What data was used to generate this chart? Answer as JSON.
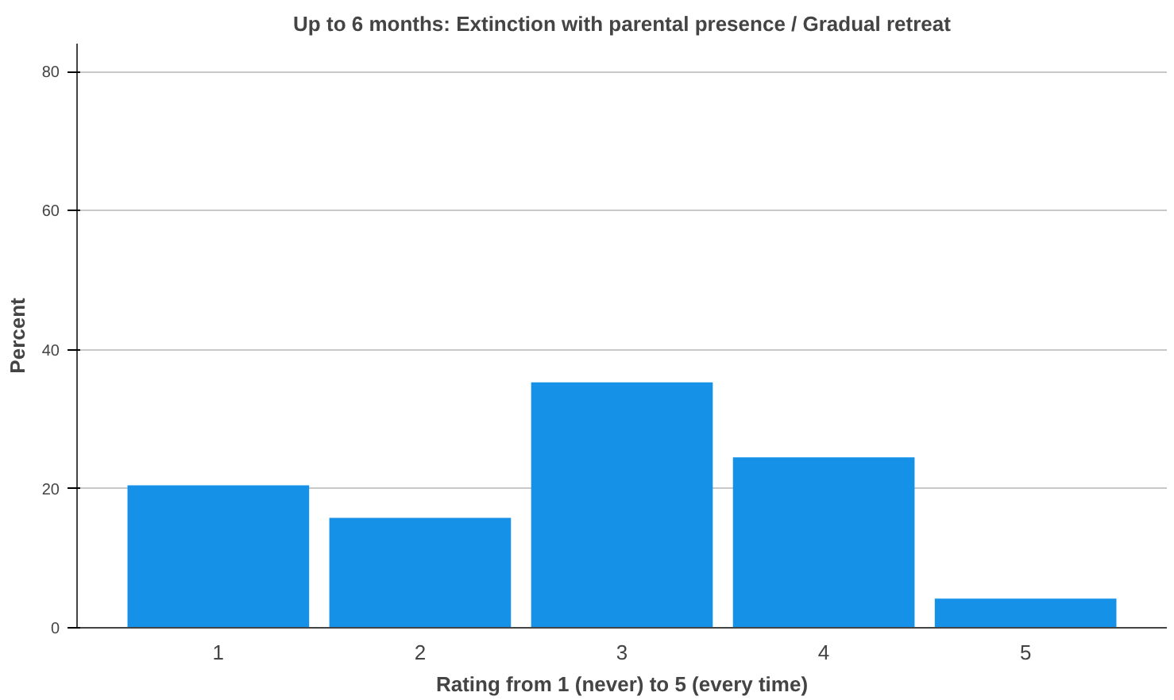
{
  "chart_data": {
    "type": "bar",
    "title": "Up to 6 months: Extinction with parental presence / Gradual retreat",
    "xlabel": "Rating from 1 (never) to 5 (every time)",
    "ylabel": "Percent",
    "categories": [
      "1",
      "2",
      "3",
      "4",
      "5"
    ],
    "values": [
      20.5,
      15.8,
      35.3,
      24.5,
      4.2
    ],
    "color": "#1591e8",
    "ylim": [
      0,
      84
    ],
    "yticks": [
      0,
      20,
      40,
      60,
      80
    ],
    "grid": "y"
  }
}
